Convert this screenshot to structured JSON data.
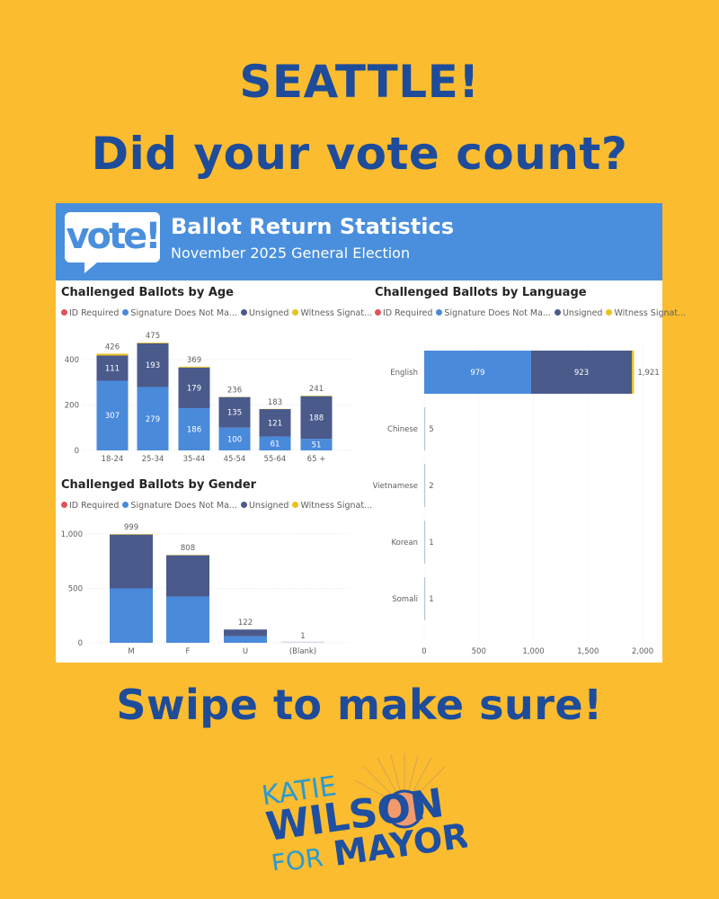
{
  "headline": {
    "line1": "SEATTLE!",
    "line2": "Did your vote count?",
    "cta": "Swipe to make sure!"
  },
  "dashboard": {
    "logo_text": "vote!",
    "title": "Ballot Return Statistics",
    "subtitle": "November 2025 General Election"
  },
  "legend": [
    {
      "label": "ID Required",
      "color": "#E0525A"
    },
    {
      "label": "Signature Does Not Ma...",
      "color": "#4A8ADB"
    },
    {
      "label": "Unsigned",
      "color": "#4A5A8B"
    },
    {
      "label": "Witness Signat...",
      "color": "#E8C31E"
    }
  ],
  "campaign_logo": {
    "line1": "KATIE",
    "line2": "WILSON",
    "line3": "FOR",
    "line4": "MAYOR"
  },
  "chart_data": [
    {
      "type": "bar",
      "stacked": true,
      "title": "Challenged Ballots by Age",
      "categories": [
        "18-24",
        "25-34",
        "35-44",
        "45-54",
        "55-64",
        "65 +"
      ],
      "series": [
        {
          "name": "ID Required",
          "values": [
            0,
            0,
            0,
            0,
            0,
            0
          ]
        },
        {
          "name": "Signature Does Not Ma...",
          "values": [
            307,
            279,
            186,
            100,
            61,
            51
          ]
        },
        {
          "name": "Unsigned",
          "values": [
            111,
            193,
            179,
            135,
            121,
            188
          ]
        },
        {
          "name": "Witness Signat...",
          "values": [
            8,
            3,
            4,
            1,
            1,
            2
          ]
        }
      ],
      "totals": [
        426,
        475,
        369,
        236,
        183,
        241
      ],
      "yticks": [
        "0",
        "200",
        "400"
      ],
      "ylim": [
        0,
        475
      ],
      "grid": true,
      "legend": "top-left"
    },
    {
      "type": "bar",
      "stacked": true,
      "title": "Challenged Ballots by Gender",
      "categories": [
        "M",
        "F",
        "U",
        "(Blank)"
      ],
      "series": [
        {
          "name": "ID Required",
          "values": [
            0,
            0,
            0,
            0
          ]
        },
        {
          "name": "Signature Does Not Ma...",
          "values": [
            500,
            425,
            60,
            1
          ]
        },
        {
          "name": "Unsigned",
          "values": [
            495,
            380,
            62,
            0
          ]
        },
        {
          "name": "Witness Signat...",
          "values": [
            4,
            3,
            0,
            0
          ]
        }
      ],
      "totals": [
        999,
        808,
        122,
        1
      ],
      "yticks": [
        "0",
        "500",
        "1,000"
      ],
      "ylim": [
        0,
        1000
      ],
      "grid": true,
      "legend": "top-left"
    },
    {
      "type": "bar",
      "orientation": "horizontal",
      "stacked": true,
      "title": "Challenged Ballots by Language",
      "categories": [
        "English",
        "Chinese",
        "Vietnamese",
        "Korean",
        "Somali"
      ],
      "series": [
        {
          "name": "ID Required",
          "values": [
            0,
            0,
            0,
            0,
            0
          ]
        },
        {
          "name": "Signature Does Not Ma...",
          "values": [
            979,
            5,
            2,
            1,
            1
          ]
        },
        {
          "name": "Unsigned",
          "values": [
            923,
            0,
            0,
            0,
            0
          ]
        },
        {
          "name": "Witness Signat...",
          "values": [
            19,
            0,
            0,
            0,
            0
          ]
        }
      ],
      "segment_labels": [
        [
          "",
          "979",
          "923",
          ""
        ],
        [
          "",
          "",
          "",
          ""
        ],
        [
          "",
          "",
          "",
          ""
        ],
        [
          "",
          "",
          "",
          ""
        ],
        [
          "",
          "",
          "",
          ""
        ]
      ],
      "totals": [
        "1,921",
        "5",
        "2",
        "1",
        "1"
      ],
      "xticks": [
        "0",
        "500",
        "1,000",
        "1,500",
        "2,000"
      ],
      "xlim": [
        0,
        2000
      ],
      "grid": true,
      "legend": "top-left"
    }
  ]
}
